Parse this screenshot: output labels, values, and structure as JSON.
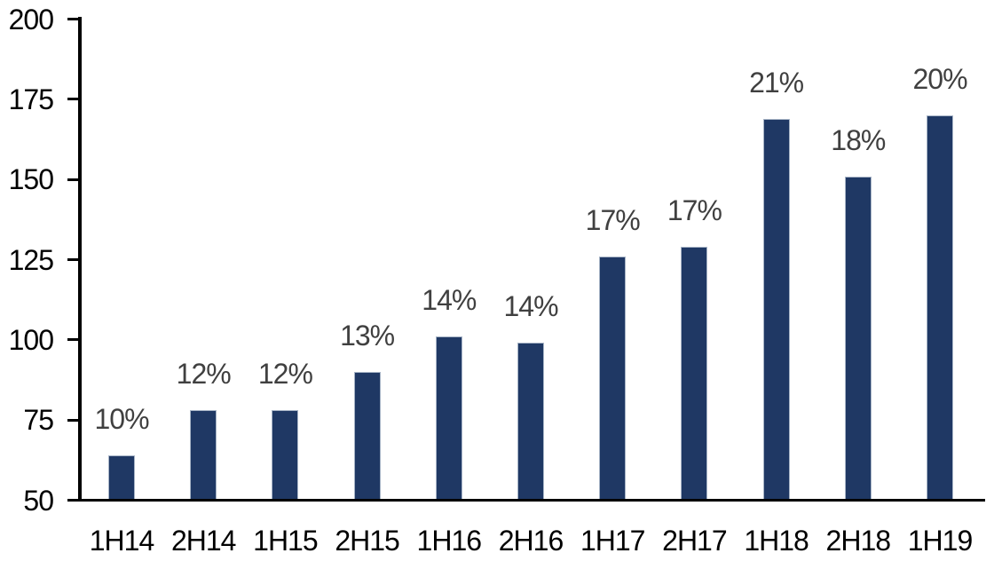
{
  "chart_data": {
    "type": "bar",
    "title": "",
    "xlabel": "",
    "ylabel": "",
    "categories": [
      "1H14",
      "2H14",
      "1H15",
      "2H15",
      "1H16",
      "2H16",
      "1H17",
      "2H17",
      "1H18",
      "2H18",
      "1H19"
    ],
    "values": [
      64,
      78,
      78,
      90,
      101,
      99,
      126,
      129,
      169,
      151,
      170
    ],
    "data_labels": [
      "10%",
      "12%",
      "12%",
      "13%",
      "14%",
      "14%",
      "17%",
      "17%",
      "21%",
      "18%",
      "20%"
    ],
    "ylim": [
      50,
      200
    ],
    "y_ticks": [
      200,
      175,
      150,
      125,
      100,
      75,
      50
    ],
    "y_tick_labels": [
      "200",
      "175",
      "150",
      "125",
      "100",
      "75",
      "50"
    ],
    "grid": false,
    "legend": false,
    "colors": {
      "bar_fill": "#1f3864",
      "bar_edge": "#a7b4c6",
      "data_label": "#404040",
      "axis": "#000000",
      "tick_label": "#000000",
      "background": "#ffffff"
    }
  }
}
